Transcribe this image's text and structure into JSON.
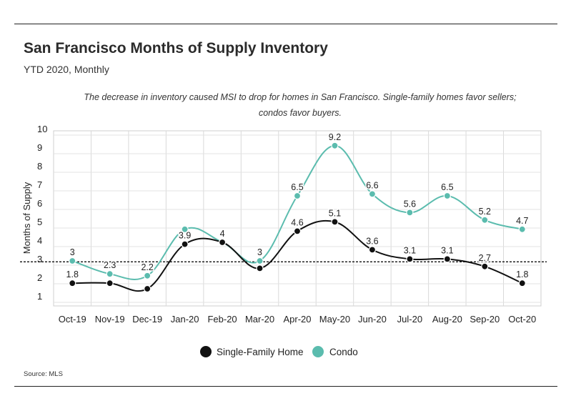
{
  "title": "San Francisco Months of Supply Inventory",
  "subtitle": "YTD 2020, Monthly",
  "annotation": "The decrease in inventory caused MSI to drop for homes in San Francisco. Single-family homes favor sellers; condos favor buyers.",
  "source": "Source:  MLS",
  "chart_data": {
    "type": "line",
    "categories": [
      "Oct-19",
      "Nov-19",
      "Dec-19",
      "Jan-20",
      "Feb-20",
      "Mar-20",
      "Apr-20",
      "May-20",
      "Jun-20",
      "Jul-20",
      "Aug-20",
      "Sep-20",
      "Oct-20"
    ],
    "ylabel": "Months of Supply",
    "ylim": [
      0.5,
      10
    ],
    "yticks": [
      1,
      2,
      3,
      4,
      5,
      6,
      7,
      8,
      9,
      10
    ],
    "grid": true,
    "reference_line": 2.95,
    "legend_position": "bottom-center",
    "series": [
      {
        "name": "Single-Family Home",
        "color": "#111111",
        "values": [
          1.8,
          1.8,
          1.5,
          3.9,
          4.0,
          2.6,
          4.6,
          5.1,
          3.6,
          3.1,
          3.1,
          2.7,
          1.8
        ],
        "labels": [
          "1.8",
          "",
          "",
          "3.9",
          "4",
          "",
          "4.6",
          "5.1",
          "3.6",
          "3.1",
          "3.1",
          "2.7",
          "1.8"
        ]
      },
      {
        "name": "Condo",
        "color": "#5bbcae",
        "values": [
          3.0,
          2.3,
          2.2,
          4.7,
          4.0,
          3.0,
          6.5,
          9.2,
          6.6,
          5.6,
          6.5,
          5.2,
          4.7
        ],
        "labels": [
          "3",
          "2.3",
          "2.2",
          "",
          "",
          "3",
          "6.5",
          "9.2",
          "6.6",
          "5.6",
          "6.5",
          "5.2",
          "4.7"
        ]
      }
    ]
  }
}
